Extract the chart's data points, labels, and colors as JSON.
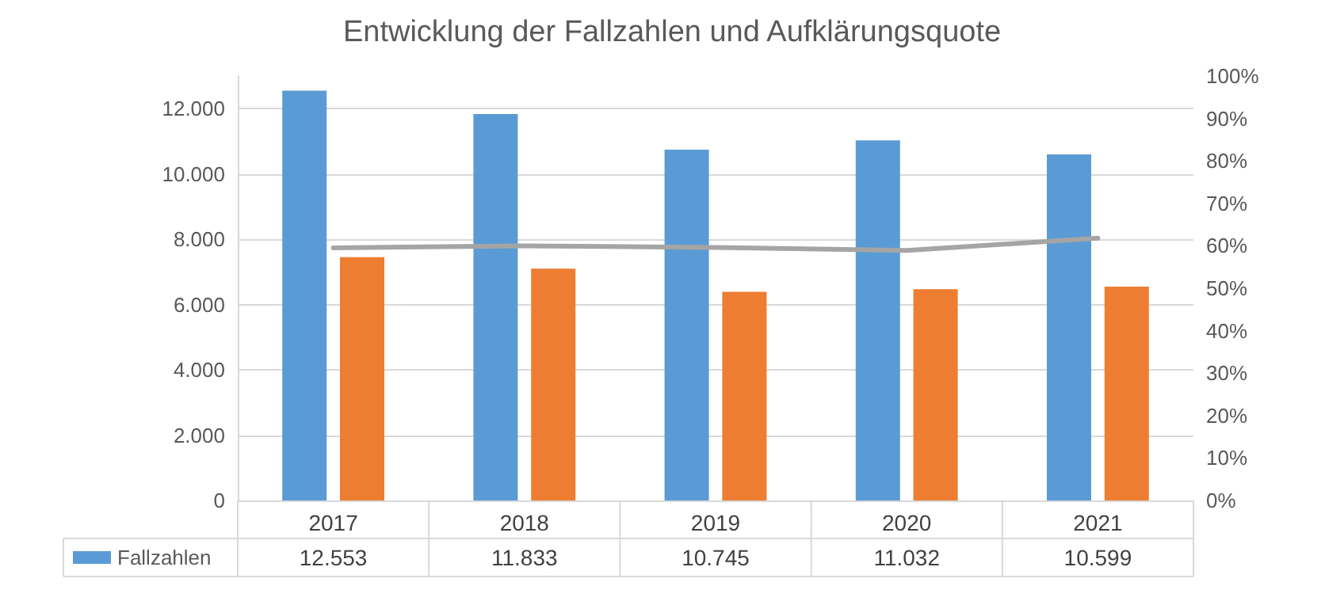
{
  "chart_data": {
    "type": "bar",
    "title": "Entwicklung der Fallzahlen und Aufklärungsquote",
    "categories": [
      "2017",
      "2018",
      "2019",
      "2020",
      "2021"
    ],
    "series": [
      {
        "name": "Fallzahlen",
        "color": "#5b9bd5",
        "values": [
          12553,
          11833,
          10745,
          11032,
          10599
        ],
        "value_labels": [
          "12.553",
          "11.833",
          "10.745",
          "11.032",
          "10.599"
        ]
      },
      {
        "color": "#ed7d31",
        "values": [
          7450,
          7100,
          6390,
          6470,
          6550
        ]
      },
      {
        "type": "line",
        "axis": "y2",
        "color": "#a5a5a5",
        "marker": "none",
        "values": [
          59.5,
          60.0,
          59.6,
          58.9,
          61.8
        ]
      }
    ],
    "ylim": [
      0,
      13000
    ],
    "yticks": [
      0,
      {
        "value": 2000,
        "label": "2.000"
      },
      {
        "value": 4000,
        "label": "4.000"
      },
      {
        "value": 6000,
        "label": "6.000"
      },
      {
        "value": 8000,
        "label": "8.000"
      },
      {
        "value": 10000,
        "label": "10.000"
      },
      {
        "value": 12000,
        "label": "12.000"
      }
    ],
    "y2lim": [
      0,
      100
    ],
    "y2ticks": [
      {
        "value": 0,
        "label": "0%"
      },
      {
        "value": 10,
        "label": "10%"
      },
      {
        "value": 20,
        "label": "20%"
      },
      {
        "value": 30,
        "label": "30%"
      },
      {
        "value": 40,
        "label": "40%"
      },
      {
        "value": 50,
        "label": "50%"
      },
      {
        "value": 60,
        "label": "60%"
      },
      {
        "value": 70,
        "label": "70%"
      },
      {
        "value": 80,
        "label": "80%"
      },
      {
        "value": 90,
        "label": "90%"
      },
      {
        "value": 100,
        "label": "100%"
      }
    ],
    "grid": "y"
  }
}
